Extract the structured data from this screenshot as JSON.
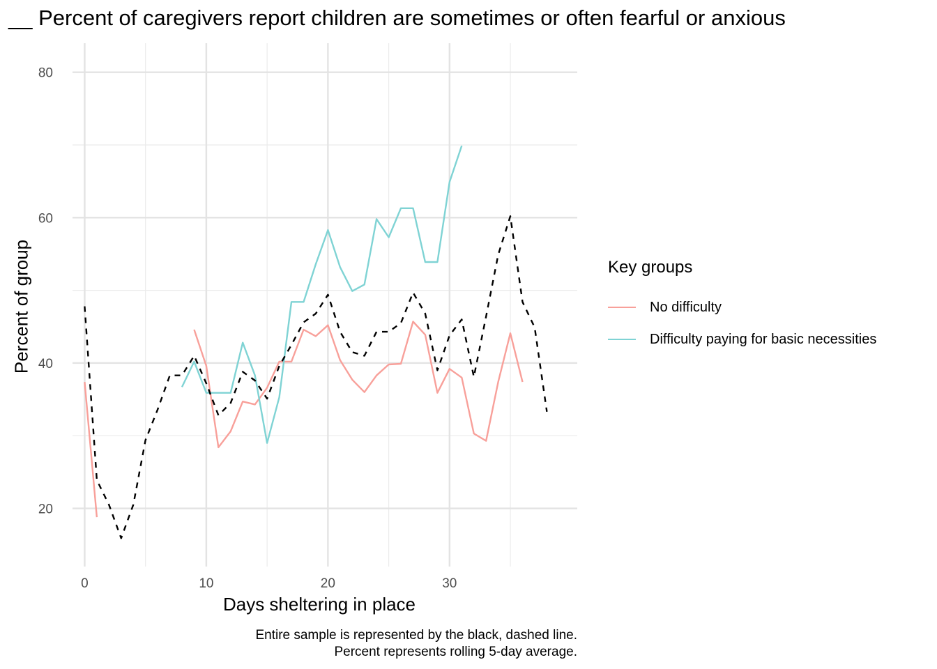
{
  "chart_data": {
    "type": "line",
    "title": "__ Percent of caregivers report children are sometimes or often fearful or anxious",
    "xlabel": "Days sheltering in place",
    "ylabel": "Percent of group",
    "xlim": [
      -1,
      40.5
    ],
    "ylim": [
      12,
      84
    ],
    "x_ticks": [
      0,
      10,
      20,
      30
    ],
    "y_ticks": [
      20,
      40,
      60,
      80
    ],
    "grid": true,
    "legend": {
      "title": "Key groups",
      "position": "right",
      "entries": [
        {
          "name": "No difficulty",
          "color": "#F8A09A"
        },
        {
          "name": "Difficulty paying for basic necessities",
          "color": "#7FD3D4"
        }
      ]
    },
    "caption": [
      "Entire sample is represented by the black, dashed line.",
      "Percent represents rolling 5-day average."
    ],
    "series": [
      {
        "name": "No difficulty",
        "color": "#F8A09A",
        "style": "solid",
        "segments": [
          {
            "x": [
              0,
              1
            ],
            "y": [
              37.4,
              18.8
            ]
          },
          {
            "x": [
              9,
              10,
              11,
              12,
              13,
              14,
              15,
              16,
              17,
              18,
              19,
              20,
              21,
              22,
              23,
              24,
              25,
              26,
              27,
              28,
              29,
              30,
              31,
              32,
              33,
              34,
              35,
              36
            ],
            "y": [
              44.6,
              39.6,
              28.4,
              30.6,
              34.7,
              34.3,
              36.6,
              40.2,
              40.2,
              44.6,
              43.7,
              45.2,
              40.4,
              37.7,
              36.0,
              38.3,
              39.8,
              39.9,
              45.7,
              43.9,
              35.9,
              39.2,
              38.0,
              30.3,
              29.3,
              37.4,
              44.1,
              37.4
            ]
          }
        ]
      },
      {
        "name": "Difficulty paying for basic necessities",
        "color": "#7FD3D4",
        "style": "solid",
        "segments": [
          {
            "x": [
              8,
              9,
              10,
              11,
              12,
              13,
              14,
              15,
              16,
              17,
              18,
              19,
              20,
              21,
              22,
              23,
              24,
              25,
              26,
              27,
              28,
              29,
              30,
              31
            ],
            "y": [
              36.7,
              40.2,
              35.9,
              35.9,
              35.9,
              42.8,
              38.3,
              29.0,
              35.3,
              48.4,
              48.4,
              53.6,
              58.3,
              53.2,
              49.9,
              50.8,
              59.8,
              57.3,
              61.3,
              61.3,
              53.9,
              53.9,
              64.9,
              69.9
            ]
          }
        ]
      },
      {
        "name": "",
        "color": "#000000",
        "style": "dashed",
        "segments": [
          {
            "x": [
              0,
              1,
              2,
              3,
              4,
              5,
              6,
              7,
              8,
              9,
              10,
              11,
              12,
              13,
              14,
              15,
              16,
              17,
              18,
              19,
              20,
              21,
              22,
              23,
              24,
              25,
              26,
              27,
              28,
              29,
              30,
              31,
              32,
              33,
              34,
              35,
              36,
              37,
              38
            ],
            "y": [
              47.8,
              23.9,
              20.5,
              15.9,
              20.5,
              29.4,
              33.6,
              38.3,
              38.3,
              41.0,
              37.2,
              32.8,
              34.5,
              38.8,
              37.6,
              35.1,
              39.6,
              42.5,
              45.6,
              46.8,
              49.4,
              44.3,
              41.5,
              41.0,
              44.3,
              44.3,
              45.5,
              49.7,
              46.8,
              39.0,
              43.8,
              46.0,
              38.1,
              46.4,
              54.9,
              60.2,
              48.4,
              44.9,
              33.3
            ]
          }
        ]
      }
    ]
  }
}
